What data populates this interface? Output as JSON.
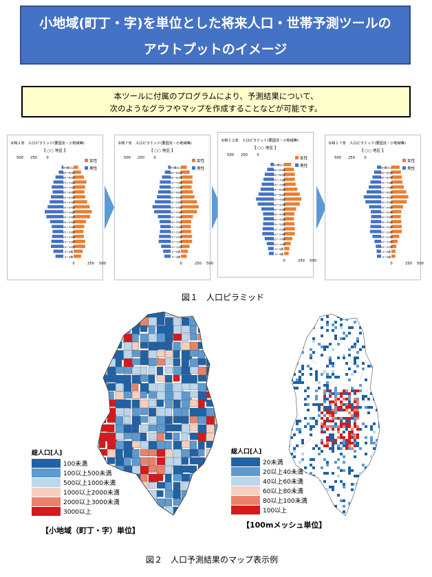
{
  "header": {
    "title_line1": "小地域(町丁・字)を単位とした将来人口・世帯予測ツールの",
    "title_line2": "アウトプットのイメージ"
  },
  "note": {
    "line1": "本ツールに付属のプログラムにより、予測結果について、",
    "line2": "次のようなグラフやマップを作成することなどが可能です。"
  },
  "figure1": {
    "caption": "図１　人口ピラミッド"
  },
  "figure2": {
    "caption": "図２　人口予測結果のマップ表示例"
  },
  "colors": {
    "female": "#ed7d31",
    "male": "#4472c4",
    "arrow": "#5b9bd5",
    "legend": [
      "#1f62a5",
      "#5d9ad0",
      "#bcd6ec",
      "#f6cfc0",
      "#e8826a",
      "#d7191c"
    ]
  },
  "chart_data": [
    {
      "type": "bar",
      "title": "令和２年　人口ピラミッド(要因法・小地域等)",
      "subtitle": "【 ○○ 地区 】",
      "legend": [
        "女性",
        "男性"
      ],
      "legend_position": "top-right",
      "top_ticks": [
        "500",
        "250",
        "0"
      ],
      "bottom_ticks": [
        "0",
        "250",
        "500"
      ],
      "categories": [
        "90歳以上",
        "85～89歳",
        "80～84歳",
        "75～79歳",
        "70～74歳",
        "65～69歳",
        "60～64歳",
        "55～59歳",
        "50～54歳",
        "45～49歳",
        "40～44歳",
        "35～39歳",
        "30～34歳",
        "25～29歳",
        "20～24歳",
        "15～19歳",
        "10～14歳",
        "5～9歳",
        "0～4歳"
      ],
      "series": [
        {
          "name": "男性",
          "values": [
            40,
            110,
            190,
            240,
            280,
            260,
            300,
            330,
            380,
            450,
            410,
            320,
            280,
            260,
            270,
            290,
            300,
            240,
            190
          ]
        },
        {
          "name": "女性",
          "values": [
            110,
            180,
            250,
            310,
            280,
            260,
            280,
            330,
            390,
            440,
            400,
            300,
            260,
            240,
            250,
            280,
            280,
            220,
            180
          ]
        }
      ],
      "xlim": [
        0,
        500
      ]
    },
    {
      "type": "bar",
      "title": "令和７年　人口ピラミッド(要因法・小地域等)",
      "subtitle": "【 ○○ 地区 】",
      "legend": [
        "女性",
        "男性"
      ],
      "legend_position": "top-right",
      "top_ticks": [
        "500",
        "250",
        "0"
      ],
      "bottom_ticks": [
        "0",
        "250",
        "500"
      ],
      "categories": [
        "90歳以上",
        "85～89歳",
        "80～84歳",
        "75～79歳",
        "70～74歳",
        "65～69歳",
        "60～64歳",
        "55～59歳",
        "50～54歳",
        "45～49歳",
        "40～44歳",
        "35～39歳",
        "30～34歳",
        "25～29歳",
        "20～24歳",
        "15～19歳",
        "10～14歳",
        "5～9歳",
        "0～4歳"
      ],
      "series": [
        {
          "name": "男性",
          "values": [
            60,
            140,
            210,
            260,
            270,
            300,
            330,
            380,
            440,
            400,
            310,
            270,
            250,
            260,
            280,
            290,
            230,
            180,
            150
          ]
        },
        {
          "name": "女性",
          "values": [
            140,
            210,
            280,
            280,
            260,
            290,
            330,
            390,
            430,
            390,
            290,
            250,
            240,
            250,
            270,
            270,
            210,
            170,
            140
          ]
        }
      ],
      "xlim": [
        0,
        500
      ]
    },
    {
      "type": "bar",
      "title": "令和１２年　人口ピラミッド(要因法・小地域等)",
      "subtitle": "【 ○○ 地区 】",
      "legend": [
        "女性",
        "男性"
      ],
      "legend_position": "top-right",
      "top_ticks": [
        "500",
        "250",
        "0"
      ],
      "bottom_ticks": [
        "0",
        "250",
        "500"
      ],
      "categories": [
        "90歳以上",
        "85～89歳",
        "80～84歳",
        "75～79歳",
        "70～74歳",
        "65～69歳",
        "60～64歳",
        "55～59歳",
        "50～54歳",
        "45～49歳",
        "40～44歳",
        "35～39歳",
        "30～34歳",
        "25～29歳",
        "20～24歳",
        "15～19歳",
        "10～14歳",
        "5～9歳",
        "0～4歳"
      ],
      "series": [
        {
          "name": "男性",
          "values": [
            80,
            160,
            220,
            250,
            290,
            320,
            370,
            430,
            390,
            300,
            260,
            250,
            260,
            270,
            280,
            220,
            170,
            140,
            120
          ]
        },
        {
          "name": "女性",
          "values": [
            170,
            240,
            260,
            260,
            280,
            320,
            380,
            420,
            380,
            290,
            250,
            240,
            250,
            260,
            260,
            200,
            160,
            130,
            110
          ]
        }
      ],
      "xlim": [
        0,
        500
      ]
    },
    {
      "type": "bar",
      "title": "令和１７年　人口ピラミッド(要因法・小地域等)",
      "subtitle": "【 ○○ 地区 】",
      "legend": [
        "女性",
        "男性"
      ],
      "legend_position": "top-right",
      "top_ticks": [
        "500",
        "250",
        "0"
      ],
      "bottom_ticks": [
        "0",
        "250",
        "500"
      ],
      "categories": [
        "90歳以上",
        "85～89歳",
        "80～84歳",
        "75～79歳",
        "70～74歳",
        "65～69歳",
        "60～64歳",
        "55～59歳",
        "50～54歳",
        "45～49歳",
        "40～44歳",
        "35～39歳",
        "30～34歳",
        "25～29歳",
        "20～24歳",
        "15～19歳",
        "10～14歳",
        "5～9歳",
        "0～4歳"
      ],
      "series": [
        {
          "name": "男性",
          "values": [
            100,
            170,
            210,
            260,
            300,
            350,
            420,
            380,
            290,
            250,
            240,
            250,
            260,
            270,
            210,
            160,
            130,
            110,
            100
          ]
        },
        {
          "name": "女性",
          "values": [
            200,
            230,
            250,
            270,
            300,
            360,
            410,
            370,
            280,
            240,
            230,
            240,
            250,
            250,
            190,
            150,
            120,
            100,
            95
          ]
        }
      ],
      "xlim": [
        0,
        500
      ]
    },
    {
      "type": "heatmap",
      "label": "【小地域（町丁・字）単位】",
      "legend_title": "総人口[人]",
      "legend_position": "bottom-left",
      "legend": [
        "100未満",
        "100以上500未満",
        "500以上1000未満",
        "1000以上2000未満",
        "2000以上3000未満",
        "3000以上"
      ]
    },
    {
      "type": "heatmap",
      "label": "【100mメッシュ単位】",
      "legend_title": "総人口[人]",
      "legend_position": "bottom-left",
      "legend": [
        "20未満",
        "20以上40未満",
        "40以上60未満",
        "60以上80未満",
        "80以上100未満",
        "100以上"
      ]
    }
  ]
}
